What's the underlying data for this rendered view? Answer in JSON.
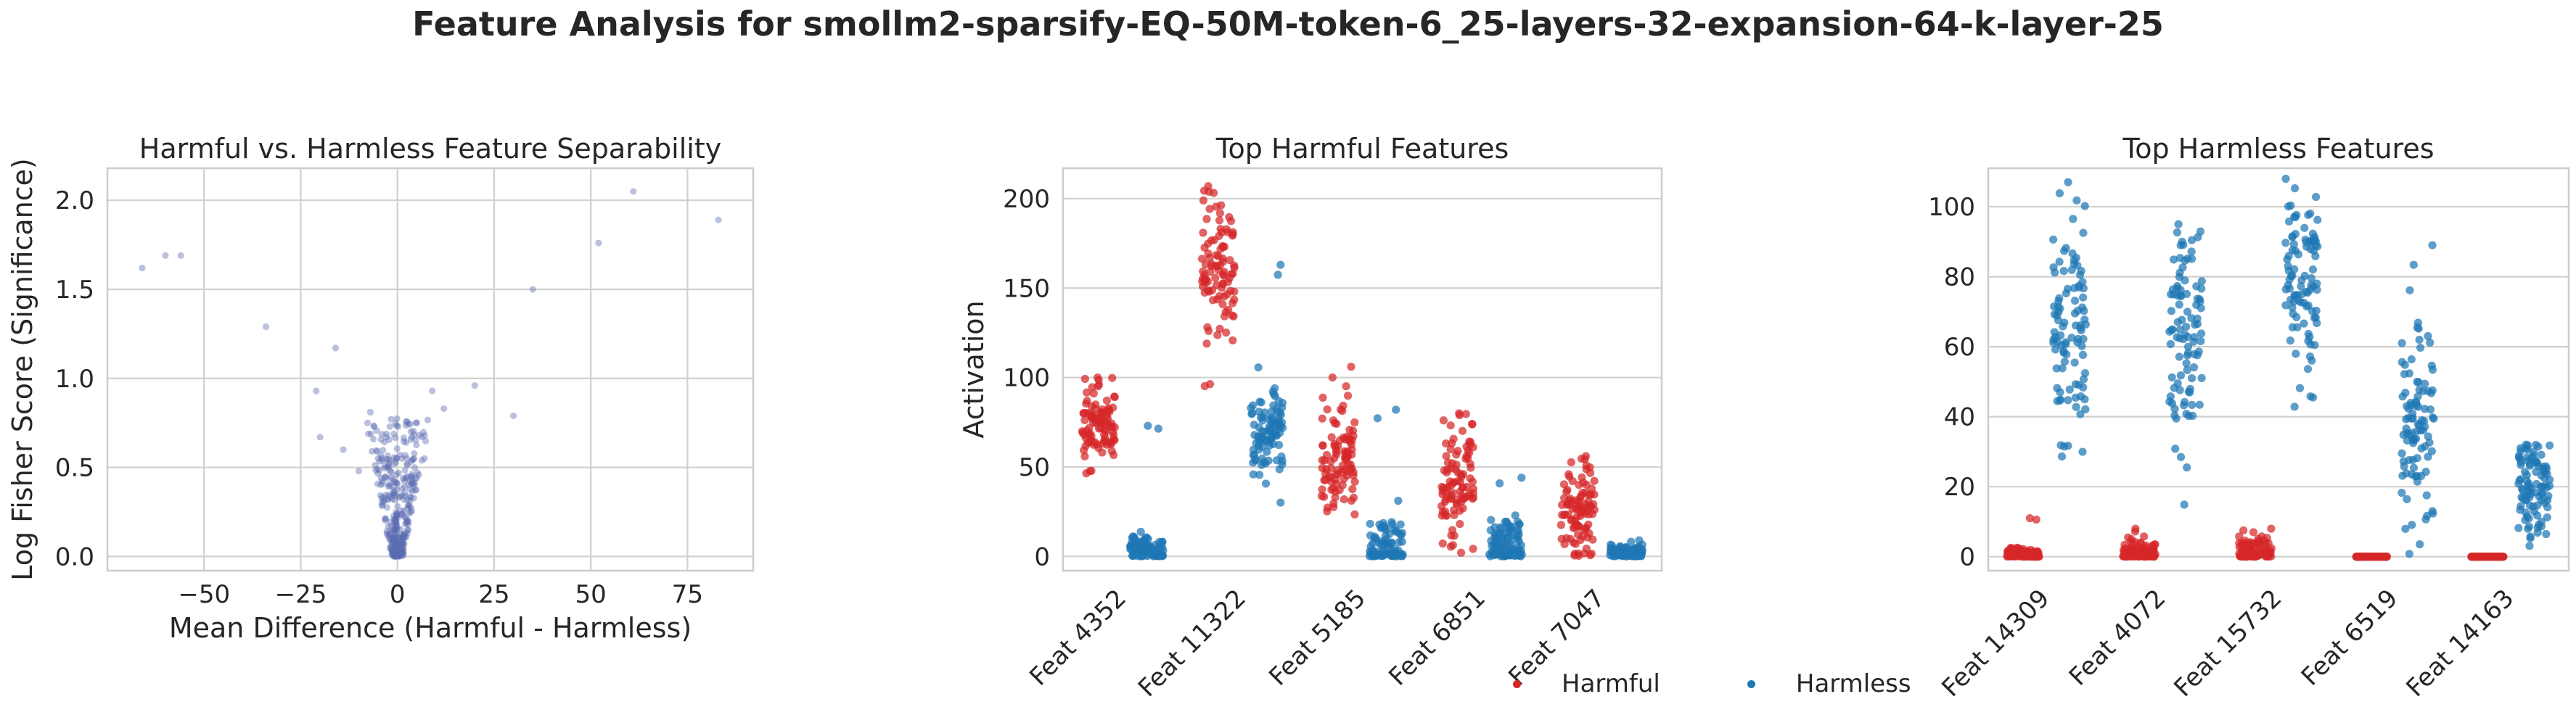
{
  "suptitle": "Feature Analysis for smollm2-sparsify-EQ-50M-token-6_25-layers-32-expansion-64-k-layer-25",
  "legend": [
    {
      "label": "Harmful",
      "color": "#d62728"
    },
    {
      "label": "Harmless",
      "color": "#1f77b4"
    }
  ],
  "chart_data": [
    {
      "type": "scatter",
      "title": "Harmful vs. Harmless Feature Separability",
      "xlabel": "Mean Difference (Harmful - Harmless)",
      "ylabel": "Log Fisher Score (Significance)",
      "xlim": [
        -75,
        92
      ],
      "ylim": [
        -0.08,
        2.18
      ],
      "xticks": [
        -50,
        -25,
        0,
        25,
        50,
        75
      ],
      "xtick_labels": [
        "−50",
        "−25",
        "0",
        "25",
        "50",
        "75"
      ],
      "yticks": [
        0.0,
        0.5,
        1.0,
        1.5,
        2.0
      ],
      "ytick_labels": [
        "0.0",
        "0.5",
        "1.0",
        "1.5",
        "2.0"
      ],
      "grid": true,
      "point_color": "#5b6bb0",
      "outliers": [
        [
          -66,
          1.62
        ],
        [
          -60,
          1.69
        ],
        [
          -56,
          1.69
        ],
        [
          -34,
          1.29
        ],
        [
          -16,
          1.17
        ],
        [
          -21,
          0.93
        ],
        [
          -20,
          0.67
        ],
        [
          -14,
          0.6
        ],
        [
          -10,
          0.48
        ],
        [
          9,
          0.93
        ],
        [
          12,
          0.83
        ],
        [
          20,
          0.96
        ],
        [
          30,
          0.79
        ],
        [
          35,
          1.5
        ],
        [
          52,
          1.76
        ],
        [
          61,
          2.05
        ],
        [
          83,
          1.89
        ],
        [
          -7,
          0.81
        ],
        [
          5,
          0.75
        ],
        [
          -5,
          0.55
        ],
        [
          7,
          0.55
        ]
      ],
      "cluster": {
        "count": 330,
        "x_spread": [
          -9,
          9
        ],
        "y_range": [
          0.0,
          0.78
        ]
      }
    },
    {
      "type": "strip",
      "title": "Top Harmful Features",
      "xlabel": "",
      "ylabel": "Activation",
      "categories": [
        "Feat 4352",
        "Feat 11322",
        "Feat 5185",
        "Feat 6851",
        "Feat 7047"
      ],
      "ylim": [
        -8,
        217
      ],
      "yticks": [
        0,
        50,
        100,
        150,
        200
      ],
      "grid": true,
      "series": [
        {
          "name": "Harmful",
          "color": "#d62728",
          "center": [
            72,
            163,
            55,
            38,
            25
          ],
          "spread": [
            10,
            20,
            15,
            17,
            13
          ],
          "min": [
            44,
            95,
            18,
            2,
            0
          ],
          "max": [
            100,
            207,
            106,
            80,
            56
          ]
        },
        {
          "name": "Harmless",
          "color": "#1f77b4",
          "center": [
            3,
            70,
            3,
            4,
            2
          ],
          "spread": [
            4,
            14,
            12,
            8,
            2
          ],
          "min": [
            0,
            0,
            0,
            0,
            0
          ],
          "max": [
            73,
            163,
            82,
            44,
            9
          ]
        }
      ]
    },
    {
      "type": "strip",
      "title": "Top Harmless Features",
      "xlabel": "",
      "ylabel": "",
      "categories": [
        "Feat 14309",
        "Feat 4072",
        "Feat 15732",
        "Feat 6519",
        "Feat 14163"
      ],
      "ylim": [
        -4,
        111
      ],
      "yticks": [
        0,
        20,
        40,
        60,
        80,
        100
      ],
      "grid": true,
      "series": [
        {
          "name": "Harmful",
          "color": "#d62728",
          "center": [
            0.5,
            1,
            1.5,
            0,
            0
          ],
          "spread": [
            1,
            2,
            2.5,
            0,
            0
          ],
          "min": [
            0,
            0,
            0,
            0,
            0
          ],
          "max": [
            11,
            8,
            8,
            0,
            0
          ]
        },
        {
          "name": "Harmless",
          "color": "#1f77b4",
          "center": [
            68,
            62,
            76,
            37,
            20
          ],
          "spread": [
            17,
            15,
            13,
            14,
            8
          ],
          "min": [
            0,
            0,
            0,
            0,
            0
          ],
          "max": [
            107,
            95,
            108,
            89,
            32
          ]
        }
      ]
    }
  ]
}
